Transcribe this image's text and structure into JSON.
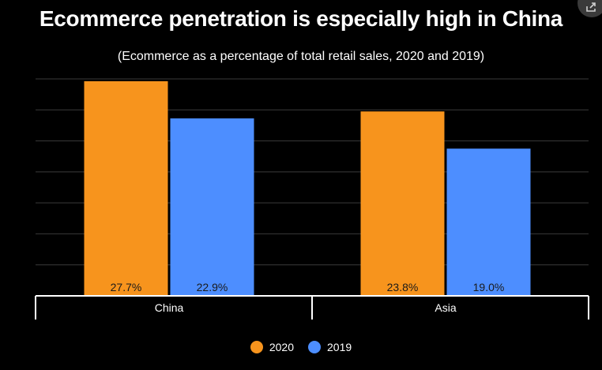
{
  "chart_data": {
    "type": "bar",
    "title": "Ecommerce penetration is especially high in China",
    "subtitle": "(Ecommerce as a percentage of total retail sales, 2020 and 2019)",
    "categories": [
      "China",
      "Asia"
    ],
    "series": [
      {
        "name": "2020",
        "values": [
          27.7,
          23.8
        ],
        "labels": [
          "27.7%",
          "23.8%"
        ],
        "color": "#f7941d"
      },
      {
        "name": "2019",
        "values": [
          22.9,
          19.0
        ],
        "labels": [
          "22.9%",
          "19.0%"
        ],
        "color": "#4d8eff"
      }
    ],
    "ylim": [
      0,
      28
    ],
    "ytick_step": 4,
    "grid": true,
    "legend_position": "bottom-center"
  },
  "colors": {
    "background": "#000000",
    "gridline": "#3a3a3a",
    "axis": "#ffffff",
    "label_text": "#1a1a1a"
  },
  "icons": {
    "share": "share-icon"
  }
}
